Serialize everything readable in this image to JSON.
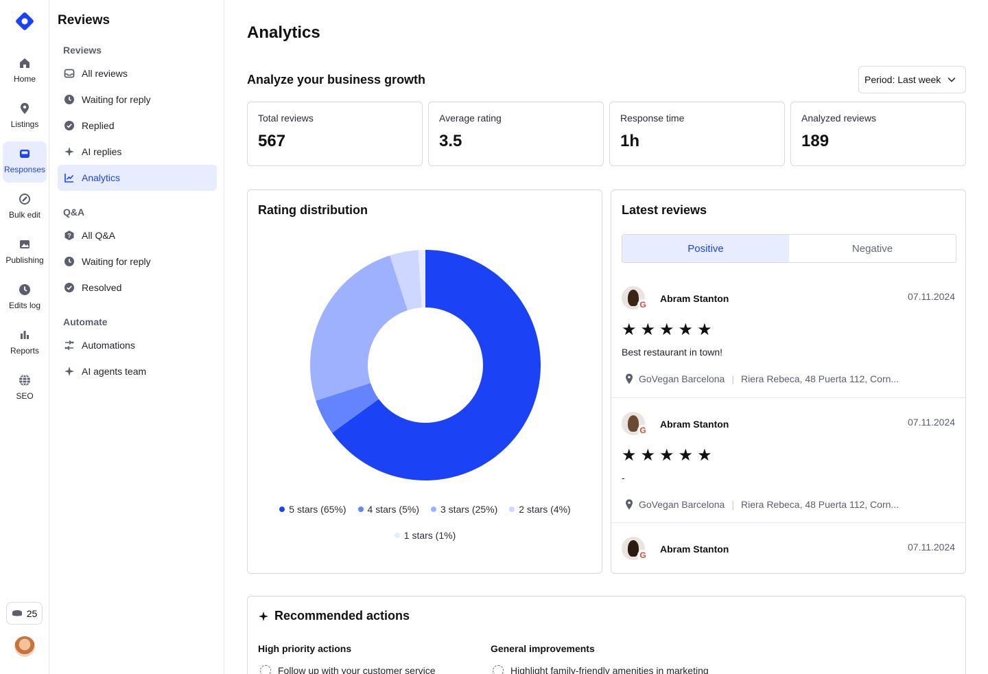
{
  "rail": {
    "items": [
      {
        "label": "Home",
        "icon": "home-icon"
      },
      {
        "label": "Listings",
        "icon": "pin-icon"
      },
      {
        "label": "Responses",
        "icon": "inbox-icon",
        "active": true
      },
      {
        "label": "Bulk edit",
        "icon": "bulk-edit-icon"
      },
      {
        "label": "Publishing",
        "icon": "image-icon"
      },
      {
        "label": "Edits log",
        "icon": "clock-icon"
      },
      {
        "label": "Reports",
        "icon": "bar-chart-icon"
      },
      {
        "label": "SEO",
        "icon": "globe-icon"
      }
    ],
    "credits": "25"
  },
  "submenu": {
    "title": "Reviews",
    "sections": {
      "reviews": "Reviews",
      "qa": "Q&A",
      "automate": "Automate"
    },
    "items": [
      {
        "label": "All reviews"
      },
      {
        "label": "Waiting for reply"
      },
      {
        "label": "Replied"
      },
      {
        "label": "AI replies"
      },
      {
        "label": "Analytics",
        "active": true
      },
      {
        "label": "All Q&A"
      },
      {
        "label": "Waiting for reply"
      },
      {
        "label": "Resolved"
      },
      {
        "label": "Automations"
      },
      {
        "label": "AI agents team"
      }
    ]
  },
  "main": {
    "title": "Analytics",
    "subtitle": "Analyze your business growth",
    "period": "Period: Last week",
    "stats": [
      {
        "label": "Total reviews",
        "value": "567"
      },
      {
        "label": "Average rating",
        "value": "3.5"
      },
      {
        "label": "Response time",
        "value": "1h"
      },
      {
        "label": "Analyzed reviews",
        "value": "189"
      }
    ]
  },
  "rating": {
    "title": "Rating distribution"
  },
  "chart_data": {
    "type": "pie",
    "donut": true,
    "categories": [
      "5 stars (65%)",
      "4 stars (5%)",
      "3 stars (25%)",
      "2 stars (4%)",
      "1 stars (1%)"
    ],
    "values": [
      65,
      5,
      25,
      4,
      1
    ],
    "colors": [
      "#1b43f5",
      "#6484ff",
      "#9db1ff",
      "#cdd7ff",
      "#e8ecff"
    ],
    "legend": "bottom"
  },
  "latest": {
    "title": "Latest reviews",
    "tabs": [
      "Positive",
      "Negative"
    ],
    "reviews": [
      {
        "name": "Abram Stanton",
        "date": "07.11.2024",
        "stars": "★★★★★",
        "text": "Best restaurant in town!",
        "business": "GoVegan Barcelona",
        "address": "Riera Rebeca, 48 Puerta 112, Corn..."
      },
      {
        "name": "Abram Stanton",
        "date": "07.11.2024",
        "stars": "★★★★★",
        "text": "-",
        "business": "GoVegan Barcelona",
        "address": "Riera Rebeca, 48 Puerta 112, Corn..."
      },
      {
        "name": "Abram Stanton",
        "date": "07.11.2024"
      }
    ]
  },
  "recommended": {
    "title": "Recommended actions",
    "high_priority": "High priority actions",
    "general": "General improvements",
    "task1": "Follow up with your customer service",
    "task2": "Highlight family-friendly amenities in marketing"
  }
}
